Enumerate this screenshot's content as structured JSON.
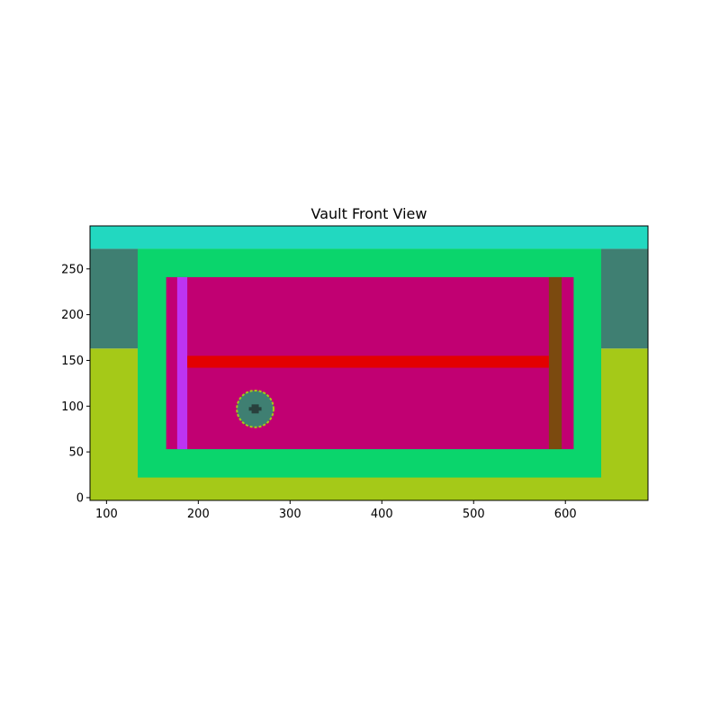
{
  "chart_data": {
    "type": "heatmap",
    "title": "Vault Front View",
    "xlabel": "",
    "ylabel": "",
    "xlim": [
      82,
      690
    ],
    "ylim": [
      -3,
      297
    ],
    "xticks": [
      100,
      200,
      300,
      400,
      500,
      600
    ],
    "yticks": [
      0,
      50,
      100,
      150,
      200,
      250
    ],
    "grid": false,
    "regions": [
      {
        "name": "ground",
        "x": [
          82,
          690
        ],
        "y": [
          -3,
          163
        ],
        "color": "#a5c918"
      },
      {
        "name": "background-wall",
        "x": [
          82,
          690
        ],
        "y": [
          163,
          272
        ],
        "color": "#3f7f72"
      },
      {
        "name": "ceiling",
        "x": [
          82,
          690
        ],
        "y": [
          272,
          297
        ],
        "color": "#22d8c0"
      },
      {
        "name": "vault-frame",
        "x": [
          134,
          639
        ],
        "y": [
          22,
          272
        ],
        "color": "#0ad56c"
      },
      {
        "name": "vault-door",
        "x": [
          165,
          609
        ],
        "y": [
          53,
          241
        ],
        "color": "#c10072"
      },
      {
        "name": "hinge-bar",
        "x": [
          177,
          188
        ],
        "y": [
          53,
          241
        ],
        "color": "#bd34f2"
      },
      {
        "name": "handle-bar",
        "x": [
          582,
          596
        ],
        "y": [
          53,
          241
        ],
        "color": "#7b4a0f"
      },
      {
        "name": "locking-bar",
        "x": [
          188,
          582
        ],
        "y": [
          142,
          155
        ],
        "color": "#e30000"
      }
    ],
    "dial": {
      "cx": 262,
      "cy": 97,
      "r": 20,
      "color": "#3f7f72",
      "ring_color": "#a5c918",
      "knob_color": "#29403d"
    }
  }
}
